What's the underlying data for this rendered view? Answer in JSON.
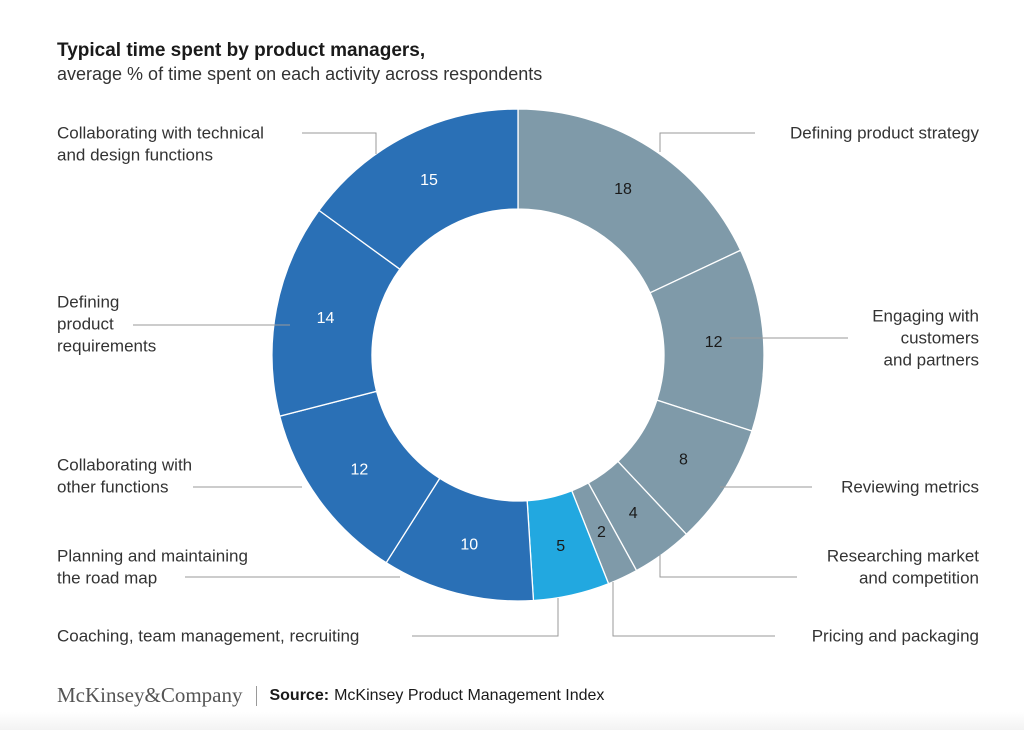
{
  "header": {
    "title": "Typical time spent by product managers,",
    "subtitle": "average % of time spent on each activity across respondents"
  },
  "chart_data": {
    "type": "pie",
    "title": "Typical time spent by product managers,",
    "subtitle": "average % of time spent on each activity across respondents",
    "unit": "%",
    "start": "12 o'clock, clockwise",
    "slices": [
      {
        "label": "Defining product strategy",
        "lines": [
          "Defining product strategy"
        ],
        "value": 18,
        "color": "#7f9aa9",
        "text_color": "#1a1a1a"
      },
      {
        "label": "Engaging with customers and partners",
        "lines": [
          "Engaging with",
          "customers",
          "and partners"
        ],
        "value": 12,
        "color": "#7f9aa9",
        "text_color": "#1a1a1a"
      },
      {
        "label": "Reviewing metrics",
        "lines": [
          "Reviewing metrics"
        ],
        "value": 8,
        "color": "#7f9aa9",
        "text_color": "#1a1a1a"
      },
      {
        "label": "Researching market and competition",
        "lines": [
          "Researching market",
          "and competition"
        ],
        "value": 4,
        "color": "#7f9aa9",
        "text_color": "#1a1a1a"
      },
      {
        "label": "Pricing and packaging",
        "lines": [
          "Pricing and packaging"
        ],
        "value": 2,
        "color": "#7f9aa9",
        "text_color": "#1a1a1a"
      },
      {
        "label": "Coaching, team management, recruiting",
        "lines": [
          "Coaching, team management, recruiting"
        ],
        "value": 5,
        "color": "#22a8e0",
        "text_color": "#1a1a1a"
      },
      {
        "label": "Planning and maintaining the road map",
        "lines": [
          "Planning and maintaining",
          "the road map"
        ],
        "value": 10,
        "color": "#2a70b6",
        "text_color": "#ffffff"
      },
      {
        "label": "Collaborating with other functions",
        "lines": [
          "Collaborating with",
          "other functions"
        ],
        "value": 12,
        "color": "#2a70b6",
        "text_color": "#ffffff"
      },
      {
        "label": "Defining product requirements",
        "lines": [
          "Defining",
          "product",
          "requirements"
        ],
        "value": 14,
        "color": "#2a70b6",
        "text_color": "#ffffff"
      },
      {
        "label": "Collaborating with technical and design functions",
        "lines": [
          "Collaborating with technical",
          "and design functions"
        ],
        "value": 15,
        "color": "#2a70b6",
        "text_color": "#ffffff"
      }
    ]
  },
  "footer": {
    "brand": "McKinsey&Company",
    "source_label": "Source:",
    "source_text": "McKinsey Product Management Index"
  }
}
